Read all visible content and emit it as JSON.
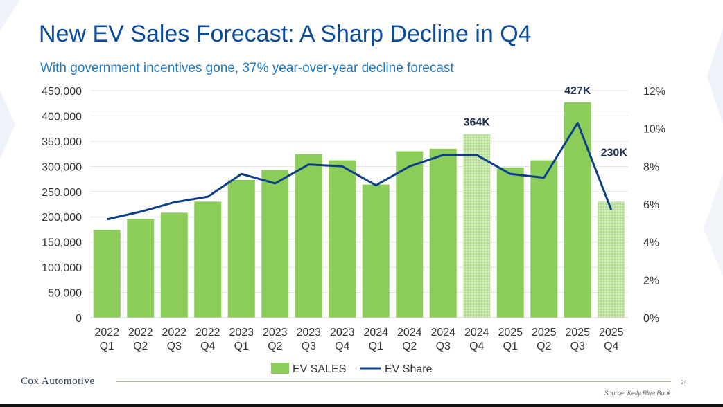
{
  "title": "New EV Sales Forecast: A Sharp Decline in Q4",
  "subtitle": "With government incentives gone, 37% year-over-year decline forecast",
  "footer": {
    "logo": "Cox Automotive",
    "page_number": "24",
    "source": "Source: Kelly Blue Book"
  },
  "colors": {
    "title": "#0a4c9c",
    "subtitle": "#1f7bc6",
    "bar": "#8ccd5a",
    "forecast_bar": "#c3e3a4",
    "line": "#0c3f8a",
    "footer_rule": "#e6a46e"
  },
  "chart_data": {
    "type": "bar",
    "categories": [
      [
        "2022",
        "Q1"
      ],
      [
        "2022",
        "Q2"
      ],
      [
        "2022",
        "Q3"
      ],
      [
        "2022",
        "Q4"
      ],
      [
        "2023",
        "Q1"
      ],
      [
        "2023",
        "Q2"
      ],
      [
        "2023",
        "Q3"
      ],
      [
        "2023",
        "Q4"
      ],
      [
        "2024",
        "Q1"
      ],
      [
        "2024",
        "Q2"
      ],
      [
        "2024",
        "Q3"
      ],
      [
        "2024",
        "Q4"
      ],
      [
        "2025",
        "Q1"
      ],
      [
        "2025",
        "Q2"
      ],
      [
        "2025",
        "Q3"
      ],
      [
        "2025",
        "Q4"
      ]
    ],
    "series": [
      {
        "name": "EV SALES",
        "type": "bar",
        "axis": "left",
        "values": [
          174000,
          196000,
          208000,
          230000,
          273000,
          293000,
          324000,
          312000,
          264000,
          330000,
          335000,
          364000,
          298000,
          312000,
          427000,
          230000
        ],
        "forecast_flags": [
          false,
          false,
          false,
          false,
          false,
          false,
          false,
          false,
          false,
          false,
          false,
          true,
          false,
          false,
          false,
          true
        ]
      },
      {
        "name": "EV Share",
        "type": "line",
        "axis": "right",
        "values": [
          5.2,
          5.6,
          6.1,
          6.4,
          7.6,
          7.1,
          8.1,
          8.0,
          7.0,
          8.0,
          8.6,
          8.6,
          7.6,
          7.4,
          10.3,
          5.7
        ]
      }
    ],
    "annotations": [
      {
        "index": 11,
        "label": "364K"
      },
      {
        "index": 14,
        "label": "427K"
      },
      {
        "index": 15,
        "label": "230K"
      }
    ],
    "left_axis": {
      "ylim": [
        0,
        450000
      ],
      "ticks": [
        0,
        50000,
        100000,
        150000,
        200000,
        250000,
        300000,
        350000,
        400000,
        450000
      ],
      "tick_labels": [
        "0",
        "50,000",
        "100,000",
        "150,000",
        "200,000",
        "250,000",
        "300,000",
        "350,000",
        "400,000",
        "450,000"
      ]
    },
    "right_axis": {
      "ylim": [
        0,
        12
      ],
      "ticks": [
        0,
        2,
        4,
        6,
        8,
        10,
        12
      ],
      "tick_labels": [
        "0%",
        "2%",
        "4%",
        "6%",
        "8%",
        "10%",
        "12%"
      ]
    },
    "grid": true,
    "legend_position": "bottom"
  }
}
